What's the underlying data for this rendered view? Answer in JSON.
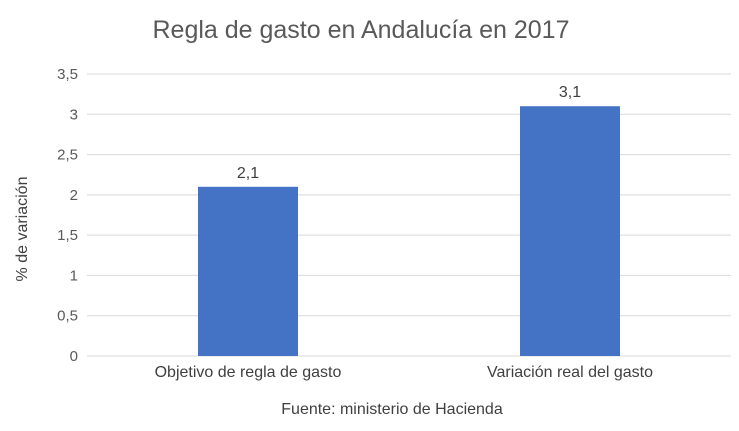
{
  "chart_data": {
    "type": "bar",
    "title": "Regla de gasto en Andalucía en 2017",
    "categories": [
      "Objetivo de regla de gasto",
      "Variación real del gasto"
    ],
    "values": [
      2.1,
      3.1
    ],
    "data_labels": [
      "2,1",
      "3,1"
    ],
    "ylabel": "% de variación",
    "xlabel": "Fuente: ministerio de Hacienda",
    "ylim": [
      0,
      3.5
    ],
    "yticks": [
      0,
      0.5,
      1,
      1.5,
      2,
      2.5,
      3,
      3.5
    ],
    "ytick_labels": [
      "0",
      "0,5",
      "1",
      "1,5",
      "2",
      "2,5",
      "3",
      "3,5"
    ],
    "grid": true,
    "legend": "none",
    "bar_color": "#4472c4"
  }
}
